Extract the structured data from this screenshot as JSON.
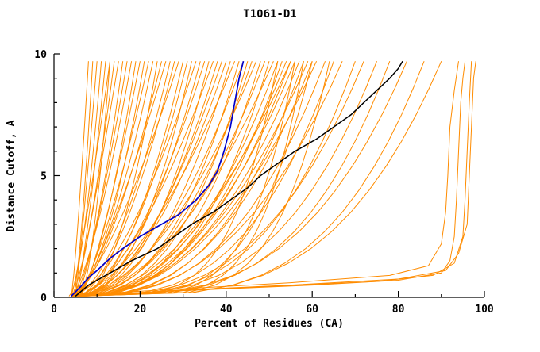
{
  "chart_data": {
    "type": "line",
    "title": "T1061-D1",
    "xlabel": "Percent of Residues (CA)",
    "ylabel": "Distance Cutoff, A",
    "xlim": [
      0,
      100
    ],
    "ylim": [
      0,
      10
    ],
    "x_major_ticks": [
      0,
      20,
      40,
      60,
      80,
      100
    ],
    "x_minor_ticks": [
      10,
      30,
      50,
      70,
      90
    ],
    "y_major_ticks": [
      0,
      5,
      10
    ],
    "y_minor_ticks": [
      1,
      2,
      3,
      4,
      6,
      7,
      8,
      9
    ],
    "grid": "off",
    "legend": "none",
    "colors": {
      "models": "#ff8c00",
      "highlight": "#0000cc",
      "reference": "#000000",
      "background": "#ffffff"
    },
    "curve_y_top": 9.7,
    "blue_curve": {
      "name": "highlighted-model",
      "points": [
        [
          4,
          0.05
        ],
        [
          6,
          0.4
        ],
        [
          8,
          0.8
        ],
        [
          10,
          1.1
        ],
        [
          13,
          1.6
        ],
        [
          16,
          2.0
        ],
        [
          20,
          2.5
        ],
        [
          25,
          3.0
        ],
        [
          29,
          3.4
        ],
        [
          33,
          4.0
        ],
        [
          36,
          4.6
        ],
        [
          38,
          5.2
        ],
        [
          39.5,
          6.0
        ],
        [
          41,
          7.0
        ],
        [
          42,
          8.0
        ],
        [
          43,
          9.0
        ],
        [
          44,
          9.7
        ]
      ]
    },
    "black_curve": {
      "name": "reference-model",
      "points": [
        [
          5,
          0.05
        ],
        [
          8,
          0.5
        ],
        [
          13,
          1.0
        ],
        [
          18,
          1.5
        ],
        [
          24,
          2.0
        ],
        [
          28,
          2.5
        ],
        [
          32,
          3.0
        ],
        [
          37,
          3.5
        ],
        [
          41,
          4.0
        ],
        [
          45,
          4.5
        ],
        [
          48,
          5.0
        ],
        [
          52,
          5.5
        ],
        [
          56,
          6.0
        ],
        [
          61,
          6.5
        ],
        [
          65,
          7.0
        ],
        [
          69,
          7.5
        ],
        [
          72,
          8.0
        ],
        [
          75,
          8.5
        ],
        [
          78,
          9.0
        ],
        [
          80,
          9.4
        ],
        [
          81,
          9.7
        ]
      ]
    },
    "orange_curves_format": "[x_percent_at_bottom, x_percent_at_top_cutoff_9.7, shape_exponent]",
    "orange_curves": [
      [
        4,
        8,
        0.8
      ],
      [
        4.5,
        9,
        0.7
      ],
      [
        5,
        10,
        0.9
      ],
      [
        3.5,
        11,
        0.6
      ],
      [
        5,
        12,
        0.75
      ],
      [
        4,
        13,
        0.85
      ],
      [
        6,
        13,
        0.6
      ],
      [
        4,
        14,
        0.7
      ],
      [
        5,
        15,
        0.9
      ],
      [
        4.5,
        16,
        0.65
      ],
      [
        5.5,
        17,
        0.8
      ],
      [
        4,
        18,
        0.7
      ],
      [
        5,
        19,
        0.6
      ],
      [
        6,
        20,
        0.75
      ],
      [
        4,
        21,
        0.55
      ],
      [
        5,
        22,
        0.7
      ],
      [
        4,
        23,
        0.6
      ],
      [
        6,
        24,
        0.5
      ],
      [
        4.5,
        25,
        0.65
      ],
      [
        5,
        26,
        0.75
      ],
      [
        4,
        27,
        0.55
      ],
      [
        5.5,
        28,
        0.6
      ],
      [
        4,
        29,
        0.7
      ],
      [
        5,
        30,
        0.5
      ],
      [
        4,
        31,
        0.5
      ],
      [
        5,
        32,
        0.45
      ],
      [
        4,
        33,
        0.6
      ],
      [
        5,
        34,
        0.5
      ],
      [
        4.5,
        35,
        0.55
      ],
      [
        4,
        36,
        0.42
      ],
      [
        5,
        37,
        0.6
      ],
      [
        4,
        38,
        0.48
      ],
      [
        6,
        39,
        0.55
      ],
      [
        4,
        40,
        0.5
      ],
      [
        5,
        41,
        0.45
      ],
      [
        4,
        42,
        0.58
      ],
      [
        4,
        43,
        0.4
      ],
      [
        5,
        44,
        0.5
      ],
      [
        4,
        45,
        0.38
      ],
      [
        5,
        46,
        0.45
      ],
      [
        4,
        47,
        0.52
      ],
      [
        6,
        48,
        0.4
      ],
      [
        4,
        49,
        0.46
      ],
      [
        5,
        50,
        0.36
      ],
      [
        4,
        51,
        0.5
      ],
      [
        5,
        52,
        0.42
      ],
      [
        4,
        53,
        0.38
      ],
      [
        5,
        54,
        0.45
      ],
      [
        4,
        55,
        0.4
      ],
      [
        6,
        55,
        0.5
      ],
      [
        5,
        56,
        0.44
      ],
      [
        4,
        57,
        0.4
      ],
      [
        5,
        58,
        0.36
      ],
      [
        4,
        59,
        0.42
      ],
      [
        5,
        60,
        0.38
      ],
      [
        6,
        61,
        0.45
      ],
      [
        5,
        52,
        0.22
      ],
      [
        6,
        56,
        0.2
      ],
      [
        5,
        60,
        0.24
      ],
      [
        6,
        64,
        0.2
      ],
      [
        5,
        58,
        0.18
      ],
      [
        4,
        63,
        0.35
      ],
      [
        5,
        65,
        0.32
      ],
      [
        4,
        67,
        0.38
      ],
      [
        5,
        70,
        0.3
      ],
      [
        6,
        72,
        0.34
      ],
      [
        4,
        75,
        0.3
      ],
      [
        5,
        78,
        0.28
      ],
      [
        4,
        82,
        0.3
      ],
      [
        5,
        86,
        0.26
      ],
      [
        6,
        90,
        0.28
      ]
    ],
    "orange_right_curves": [
      [
        [
          6,
          0.05
        ],
        [
          20,
          0.2
        ],
        [
          40,
          0.35
        ],
        [
          60,
          0.5
        ],
        [
          80,
          0.7
        ],
        [
          90,
          1.0
        ],
        [
          92,
          1.5
        ],
        [
          93,
          2.5
        ],
        [
          93.5,
          4
        ],
        [
          94,
          6
        ],
        [
          94.5,
          8
        ],
        [
          95,
          9.0
        ],
        [
          95.5,
          9.7
        ]
      ],
      [
        [
          6,
          0.05
        ],
        [
          25,
          0.25
        ],
        [
          50,
          0.45
        ],
        [
          75,
          0.65
        ],
        [
          88,
          0.9
        ],
        [
          93,
          1.4
        ],
        [
          95,
          2.5
        ],
        [
          95.5,
          4
        ],
        [
          96,
          6
        ],
        [
          96.5,
          8
        ],
        [
          97,
          9.7
        ]
      ],
      [
        [
          7,
          0.05
        ],
        [
          30,
          0.3
        ],
        [
          55,
          0.5
        ],
        [
          80,
          0.75
        ],
        [
          91,
          1.1
        ],
        [
          94,
          1.8
        ],
        [
          96,
          3
        ],
        [
          96.5,
          5
        ],
        [
          97,
          7
        ],
        [
          97.5,
          9
        ],
        [
          98,
          9.7
        ]
      ],
      [
        [
          5,
          0.05
        ],
        [
          15,
          0.2
        ],
        [
          35,
          0.4
        ],
        [
          55,
          0.6
        ],
        [
          78,
          0.9
        ],
        [
          87,
          1.3
        ],
        [
          90,
          2.2
        ],
        [
          91,
          3.5
        ],
        [
          91.5,
          5
        ],
        [
          92,
          7
        ],
        [
          93,
          8.5
        ],
        [
          94,
          9.7
        ]
      ]
    ]
  }
}
